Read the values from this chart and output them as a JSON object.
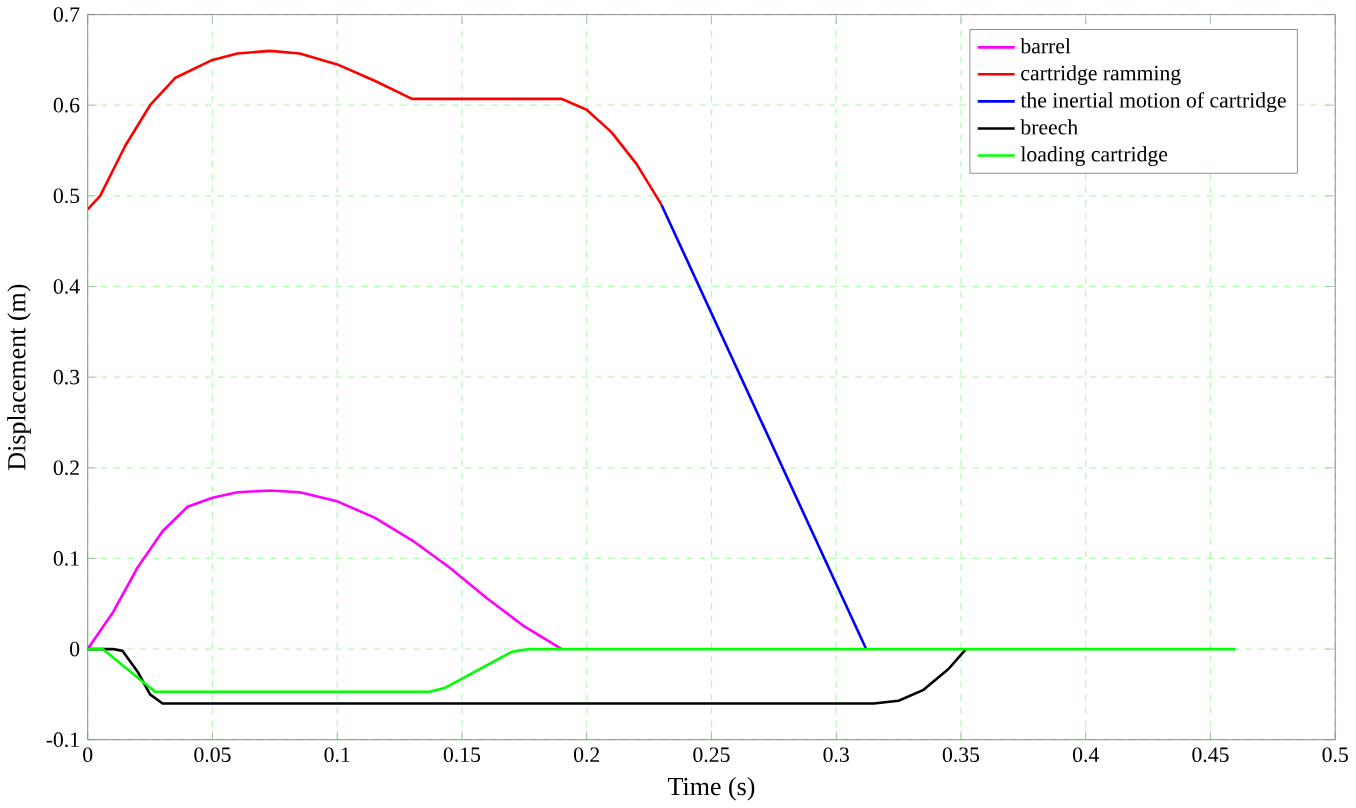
{
  "chart_data": {
    "type": "line",
    "xlabel": "Time (s)",
    "ylabel": "Displacement (m)",
    "xlim": [
      0,
      0.5
    ],
    "ylim": [
      -0.1,
      0.7
    ],
    "xticks": [
      0,
      0.05,
      0.1,
      0.15,
      0.2,
      0.25,
      0.3,
      0.35,
      0.4,
      0.45,
      0.5
    ],
    "yticks": [
      -0.1,
      0,
      0.1,
      0.2,
      0.3,
      0.4,
      0.5,
      0.6,
      0.7
    ],
    "grid": true,
    "legend": "top right",
    "line_style": "solid",
    "marker": "none",
    "series": [
      {
        "name": "barrel",
        "color": "#ff00ff",
        "x": [
          0,
          0.01,
          0.02,
          0.03,
          0.04,
          0.05,
          0.06,
          0.073,
          0.085,
          0.1,
          0.115,
          0.13,
          0.145,
          0.16,
          0.175,
          0.19
        ],
        "values": [
          0,
          0.04,
          0.09,
          0.13,
          0.157,
          0.167,
          0.173,
          0.175,
          0.173,
          0.163,
          0.145,
          0.12,
          0.09,
          0.056,
          0.025,
          0
        ]
      },
      {
        "name": "cartridge ramming",
        "color": "#ff0000",
        "x": [
          0,
          0.005,
          0.015,
          0.025,
          0.035,
          0.05,
          0.06,
          0.073,
          0.085,
          0.1,
          0.115,
          0.13,
          0.19,
          0.2,
          0.21,
          0.22,
          0.23
        ],
        "values": [
          0.485,
          0.5,
          0.555,
          0.6,
          0.63,
          0.65,
          0.657,
          0.66,
          0.657,
          0.645,
          0.627,
          0.607,
          0.607,
          0.595,
          0.57,
          0.535,
          0.49
        ]
      },
      {
        "name": "the inertial motion of cartridge",
        "color": "#0000ff",
        "x": [
          0.23,
          0.312
        ],
        "values": [
          0.49,
          0
        ]
      },
      {
        "name": "breech",
        "color": "#000000",
        "x": [
          0,
          0.01,
          0.014,
          0.02,
          0.025,
          0.03,
          0.315,
          0.325,
          0.335,
          0.345,
          0.352
        ],
        "values": [
          0,
          0,
          -0.002,
          -0.025,
          -0.05,
          -0.06,
          -0.06,
          -0.057,
          -0.045,
          -0.022,
          0
        ]
      },
      {
        "name": "loading cartridge",
        "color": "#00ff00",
        "x": [
          0,
          0.006,
          0.027,
          0.137,
          0.143,
          0.17,
          0.177,
          0.46
        ],
        "values": [
          0,
          0,
          -0.047,
          -0.047,
          -0.043,
          -0.003,
          0,
          0
        ]
      }
    ]
  }
}
